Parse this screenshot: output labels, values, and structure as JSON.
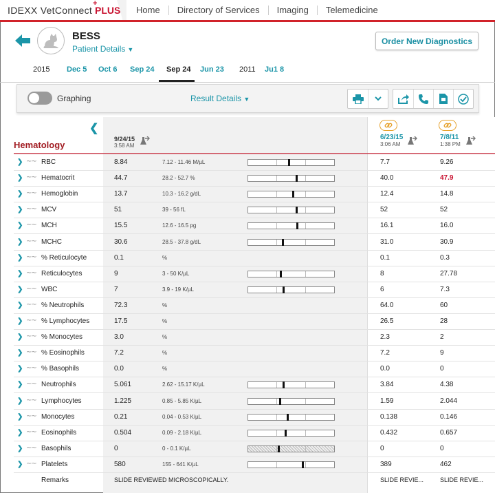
{
  "app": {
    "brand_idexx": "IDEXX VetConnect",
    "brand_plus": "PLUS",
    "nav": [
      "Home",
      "Directory of Services",
      "Imaging",
      "Telemedicine"
    ]
  },
  "patient": {
    "name": "BESS",
    "details_label": "Patient Details",
    "order_button": "Order New Diagnostics"
  },
  "date_tabs": [
    {
      "label": "2015",
      "kind": "year"
    },
    {
      "label": "Dec 5",
      "kind": "date"
    },
    {
      "label": "Oct 6",
      "kind": "date"
    },
    {
      "label": "Sep 24",
      "kind": "date"
    },
    {
      "label": "Sep 24",
      "kind": "active"
    },
    {
      "label": "Jun 23",
      "kind": "date"
    },
    {
      "label": "2011",
      "kind": "year"
    },
    {
      "label": "Ju1 8",
      "kind": "date"
    }
  ],
  "toolbar": {
    "graphing_label": "Graphing",
    "graphing_on": false,
    "result_details_label": "Result Details"
  },
  "section": {
    "title": "Hematology",
    "current": {
      "date": "9/24/15",
      "time": "3:58 AM"
    },
    "history": [
      {
        "date": "6/23/15",
        "time": "3:06 AM"
      },
      {
        "date": "7/8/11",
        "time": "1:38 PM"
      }
    ]
  },
  "rows": [
    {
      "name": "RBC",
      "value": "8.84",
      "range": "7.12 - 11.46 M/µL",
      "marker": 0.46,
      "h1": "7.7",
      "h2": "9.26"
    },
    {
      "name": "Hematocrit",
      "value": "44.7",
      "range": "28.2 - 52.7 %",
      "marker": 0.55,
      "h1": "40.0",
      "h2": "47.9",
      "h2_high": true
    },
    {
      "name": "Hemoglobin",
      "value": "13.7",
      "range": "10.3 - 16.2 g/dL",
      "marker": 0.51,
      "h1": "12.4",
      "h2": "14.8"
    },
    {
      "name": "MCV",
      "value": "51",
      "range": "39 - 56 fL",
      "marker": 0.55,
      "h1": "52",
      "h2": "52"
    },
    {
      "name": "MCH",
      "value": "15.5",
      "range": "12.6 - 16.5 pg",
      "marker": 0.56,
      "h1": "16.1",
      "h2": "16.0"
    },
    {
      "name": "MCHC",
      "value": "30.6",
      "range": "28.5 - 37.8 g/dL",
      "marker": 0.39,
      "h1": "31.0",
      "h2": "30.9"
    },
    {
      "name": "% Reticulocyte",
      "value": "0.1",
      "range": "%",
      "marker": null,
      "h1": "0.1",
      "h2": "0.3"
    },
    {
      "name": "Reticulocytes",
      "value": "9",
      "range": "3 - 50 K/µL",
      "marker": 0.37,
      "h1": "8",
      "h2": "27.78"
    },
    {
      "name": "WBC",
      "value": "7",
      "range": "3.9 - 19 K/µL",
      "marker": 0.4,
      "h1": "6",
      "h2": "7.3"
    },
    {
      "name": "% Neutrophils",
      "value": "72.3",
      "range": "%",
      "marker": null,
      "h1": "64.0",
      "h2": "60"
    },
    {
      "name": "% Lymphocytes",
      "value": "17.5",
      "range": "%",
      "marker": null,
      "h1": "26.5",
      "h2": "28"
    },
    {
      "name": "% Monocytes",
      "value": "3.0",
      "range": "%",
      "marker": null,
      "h1": "2.3",
      "h2": "2"
    },
    {
      "name": "% Eosinophils",
      "value": "7.2",
      "range": "%",
      "marker": null,
      "h1": "7.2",
      "h2": "9"
    },
    {
      "name": "% Basophils",
      "value": "0.0",
      "range": "%",
      "marker": null,
      "h1": "0.0",
      "h2": "0"
    },
    {
      "name": "Neutrophils",
      "value": "5.061",
      "range": "2.62 - 15.17 K/µL",
      "marker": 0.4,
      "h1": "3.84",
      "h2": "4.38"
    },
    {
      "name": "Lymphocytes",
      "value": "1.225",
      "range": "0.85 - 5.85 K/µL",
      "marker": 0.36,
      "h1": "1.59",
      "h2": "2.044"
    },
    {
      "name": "Monocytes",
      "value": "0.21",
      "range": "0.04 - 0.53 K/µL",
      "marker": 0.45,
      "h1": "0.138",
      "h2": "0.146"
    },
    {
      "name": "Eosinophils",
      "value": "0.504",
      "range": "0.09 - 2.18 K/µL",
      "marker": 0.42,
      "h1": "0.432",
      "h2": "0.657"
    },
    {
      "name": "Basophils",
      "value": "0",
      "range": "0 - 0.1 K/µL",
      "marker": 0.34,
      "hatched": true,
      "h1": "0",
      "h2": "0"
    },
    {
      "name": "Platelets",
      "value": "580",
      "range": "155 - 641 K/µL",
      "marker": 0.62,
      "h1": "389",
      "h2": "462"
    }
  ],
  "remarks": {
    "name": "Remarks",
    "value": "SLIDE REVIEWED MICROSCOPICALLY.",
    "h1": "SLIDE REVIE...",
    "h2": "SLIDE REVIE..."
  },
  "colors": {
    "accent": "#1b95a8",
    "brand_red": "#d1232a",
    "high_value": "#c8102e"
  }
}
